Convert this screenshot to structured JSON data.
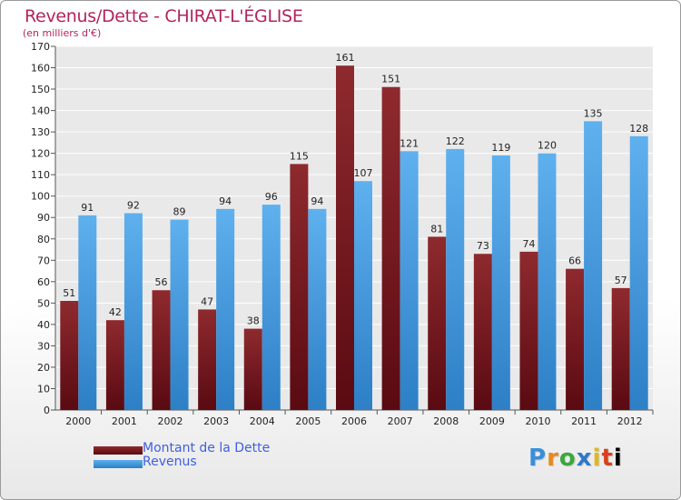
{
  "chart_data": {
    "type": "bar",
    "title": "Revenus/Dette - CHIRAT-L'ÉGLISE",
    "subtitle": "(en milliers d'€)",
    "xlabel": "",
    "ylabel": "",
    "ylim": [
      0,
      170
    ],
    "ytick_step": 10,
    "grid": true,
    "legend_position": "bottom-left",
    "categories": [
      "2000",
      "2001",
      "2002",
      "2003",
      "2004",
      "2005",
      "2006",
      "2007",
      "2008",
      "2009",
      "2010",
      "2011",
      "2012"
    ],
    "series": [
      {
        "name": "Montant de la Dette",
        "color": "#8b1a1a",
        "values": [
          51,
          42,
          56,
          47,
          38,
          115,
          161,
          151,
          81,
          73,
          74,
          66,
          57
        ]
      },
      {
        "name": "Revenus",
        "color": "#4aa3e8",
        "values": [
          91,
          92,
          89,
          94,
          96,
          94,
          107,
          121,
          122,
          119,
          120,
          135,
          128
        ]
      }
    ]
  },
  "logo": {
    "letters": [
      "P",
      "r",
      "o",
      "x",
      "i",
      "t",
      "i"
    ]
  }
}
